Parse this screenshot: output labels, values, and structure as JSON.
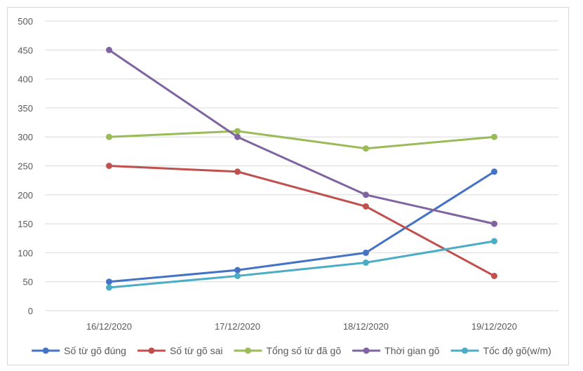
{
  "chart_data": {
    "type": "line",
    "categories": [
      "16/12/2020",
      "17/12/2020",
      "18/12/2020",
      "19/12/2020"
    ],
    "ylim": [
      0,
      500
    ],
    "yticks": [
      0,
      50,
      100,
      150,
      200,
      250,
      300,
      350,
      400,
      450,
      500
    ],
    "grid": true,
    "legend_position": "bottom",
    "series": [
      {
        "name": "Số từ gõ đúng",
        "color": "#4472C4",
        "values": [
          50,
          70,
          100,
          240
        ]
      },
      {
        "name": "Số từ gõ sai",
        "color": "#C0504D",
        "values": [
          250,
          240,
          180,
          60
        ]
      },
      {
        "name": "Tổng số từ đã gõ",
        "color": "#9BBB59",
        "values": [
          300,
          310,
          280,
          300
        ]
      },
      {
        "name": "Thời gian gõ",
        "color": "#8064A2",
        "values": [
          450,
          300,
          200,
          150
        ]
      },
      {
        "name": "Tốc độ gõ(w/m)",
        "color": "#4BACC6",
        "values": [
          40,
          60,
          83,
          120
        ]
      }
    ]
  }
}
